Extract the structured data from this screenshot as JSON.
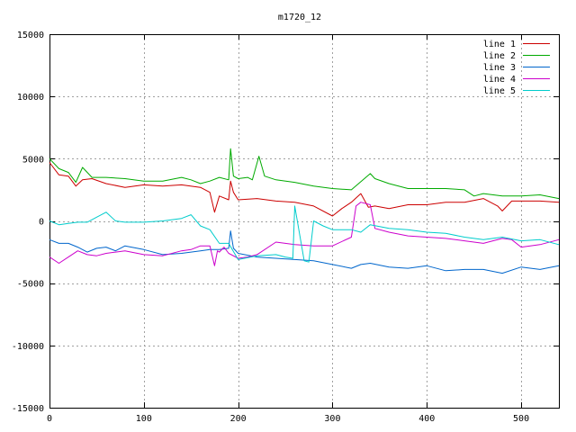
{
  "chart_data": {
    "type": "line",
    "title": "m1720_12",
    "xlabel": "",
    "ylabel": "",
    "xlim": [
      0,
      540
    ],
    "ylim": [
      -15000,
      15000
    ],
    "xticks": [
      0,
      100,
      200,
      300,
      400,
      500
    ],
    "yticks": [
      -15000,
      -10000,
      -5000,
      0,
      5000,
      10000,
      15000
    ],
    "grid": true,
    "legend": "top-right",
    "series": [
      {
        "name": "line 1",
        "color": "#cc0000",
        "x": [
          0,
          10,
          20,
          28,
          35,
          45,
          60,
          80,
          100,
          120,
          140,
          160,
          170,
          175,
          180,
          190,
          192,
          195,
          200,
          220,
          240,
          260,
          280,
          300,
          310,
          320,
          330,
          338,
          345,
          360,
          380,
          400,
          420,
          440,
          460,
          475,
          480,
          490,
          500,
          520,
          540
        ],
        "y": [
          4700,
          3700,
          3600,
          2800,
          3300,
          3400,
          3000,
          2700,
          2900,
          2800,
          2900,
          2700,
          2300,
          700,
          2000,
          1700,
          3200,
          2300,
          1700,
          1800,
          1600,
          1500,
          1200,
          400,
          1000,
          1500,
          2200,
          1100,
          1200,
          1000,
          1300,
          1300,
          1500,
          1500,
          1800,
          1200,
          800,
          1600,
          1600,
          1600,
          1500
        ]
      },
      {
        "name": "line 2",
        "color": "#00aa00",
        "x": [
          0,
          10,
          20,
          28,
          35,
          45,
          60,
          80,
          100,
          120,
          140,
          150,
          160,
          170,
          180,
          190,
          192,
          195,
          200,
          210,
          215,
          222,
          228,
          240,
          260,
          280,
          300,
          320,
          340,
          345,
          360,
          380,
          400,
          420,
          440,
          450,
          460,
          480,
          500,
          520,
          540
        ],
        "y": [
          5000,
          4200,
          3900,
          3100,
          4300,
          3500,
          3500,
          3400,
          3200,
          3200,
          3500,
          3300,
          3000,
          3200,
          3500,
          3300,
          5800,
          3600,
          3400,
          3500,
          3300,
          5200,
          3600,
          3300,
          3100,
          2800,
          2600,
          2500,
          3800,
          3400,
          3000,
          2600,
          2600,
          2600,
          2500,
          2000,
          2200,
          2000,
          2000,
          2100,
          1800
        ]
      },
      {
        "name": "line 3",
        "color": "#0066cc",
        "x": [
          0,
          10,
          20,
          30,
          40,
          50,
          60,
          70,
          80,
          100,
          120,
          140,
          160,
          170,
          180,
          190,
          192,
          195,
          200,
          220,
          240,
          260,
          280,
          300,
          320,
          330,
          340,
          360,
          380,
          400,
          420,
          440,
          460,
          480,
          500,
          520,
          540
        ],
        "y": [
          -1500,
          -1800,
          -1800,
          -2100,
          -2500,
          -2200,
          -2100,
          -2400,
          -2000,
          -2300,
          -2700,
          -2600,
          -2400,
          -2300,
          -2300,
          -2200,
          -800,
          -2200,
          -2600,
          -2900,
          -3000,
          -3100,
          -3200,
          -3500,
          -3800,
          -3500,
          -3400,
          -3700,
          -3800,
          -3600,
          -4000,
          -3900,
          -3900,
          -4200,
          -3700,
          -3900,
          -3600
        ]
      },
      {
        "name": "line 4",
        "color": "#cc00cc",
        "x": [
          0,
          10,
          20,
          30,
          40,
          50,
          60,
          70,
          80,
          100,
          120,
          140,
          150,
          160,
          170,
          175,
          178,
          180,
          185,
          190,
          200,
          210,
          220,
          240,
          260,
          280,
          300,
          320,
          325,
          330,
          340,
          345,
          360,
          380,
          400,
          420,
          440,
          460,
          480,
          490,
          500,
          520,
          540
        ],
        "y": [
          -2900,
          -3400,
          -2900,
          -2400,
          -2700,
          -2800,
          -2600,
          -2500,
          -2400,
          -2700,
          -2800,
          -2400,
          -2300,
          -2000,
          -2000,
          -3600,
          -2400,
          -2500,
          -2100,
          -2600,
          -3000,
          -2900,
          -2700,
          -1700,
          -1900,
          -2000,
          -2000,
          -1300,
          1200,
          1500,
          1300,
          -600,
          -900,
          -1200,
          -1300,
          -1400,
          -1600,
          -1800,
          -1400,
          -1500,
          -2100,
          -1900,
          -1500
        ]
      },
      {
        "name": "line 5",
        "color": "#00cccc",
        "x": [
          0,
          10,
          20,
          30,
          40,
          50,
          60,
          70,
          80,
          100,
          120,
          140,
          150,
          160,
          170,
          180,
          190,
          200,
          220,
          240,
          250,
          258,
          260,
          270,
          275,
          280,
          290,
          300,
          320,
          330,
          340,
          360,
          380,
          400,
          420,
          440,
          460,
          480,
          500,
          520,
          540
        ],
        "y": [
          0,
          -300,
          -200,
          -100,
          -100,
          300,
          700,
          0,
          -100,
          -100,
          0,
          200,
          500,
          -400,
          -700,
          -1800,
          -1800,
          -3100,
          -2800,
          -2700,
          -2900,
          -3000,
          1200,
          -3200,
          -3300,
          0,
          -400,
          -700,
          -700,
          -900,
          -300,
          -600,
          -700,
          -900,
          -1000,
          -1300,
          -1500,
          -1300,
          -1600,
          -1500,
          -1900
        ]
      }
    ]
  }
}
